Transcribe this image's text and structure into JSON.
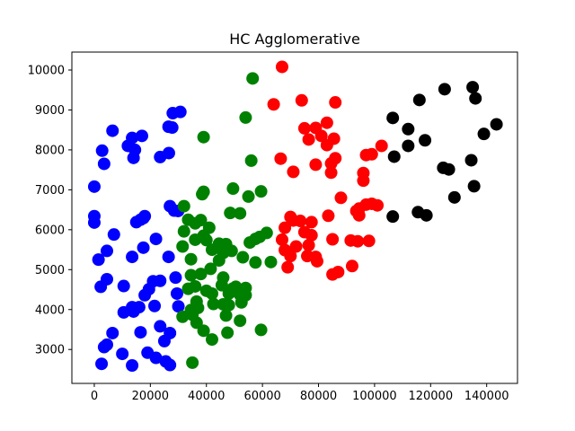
{
  "chart_data": {
    "type": "scatter",
    "title": "HC Agglomerative",
    "xlabel": "",
    "ylabel": "",
    "xlim": [
      -8000,
      151000
    ],
    "ylim": [
      2150,
      10450
    ],
    "grid": false,
    "xticks": [
      0,
      20000,
      40000,
      60000,
      80000,
      100000,
      120000,
      140000
    ],
    "yticks": [
      3000,
      4000,
      5000,
      6000,
      7000,
      8000,
      9000,
      10000
    ],
    "xtick_labels": [
      "0",
      "20000",
      "40000",
      "60000",
      "80000",
      "100000",
      "120000",
      "140000"
    ],
    "ytick_labels": [
      "3000",
      "4000",
      "5000",
      "6000",
      "7000",
      "8000",
      "9000",
      "10000"
    ],
    "series": [
      {
        "color": "#0000ff",
        "points": [
          [
            6500,
            8480
          ],
          [
            2800,
            7980
          ],
          [
            3500,
            7650
          ],
          [
            13500,
            8300
          ],
          [
            17000,
            8350
          ],
          [
            14500,
            8000
          ],
          [
            12000,
            8100
          ],
          [
            14000,
            7800
          ],
          [
            28000,
            8920
          ],
          [
            30700,
            8950
          ],
          [
            26500,
            8580
          ],
          [
            27800,
            8560
          ],
          [
            26600,
            7920
          ],
          [
            23500,
            7820
          ],
          [
            0,
            7080
          ],
          [
            0,
            6340
          ],
          [
            0,
            6180
          ],
          [
            27000,
            6590
          ],
          [
            28500,
            6480
          ],
          [
            29900,
            6470
          ],
          [
            15000,
            6190
          ],
          [
            17500,
            6290
          ],
          [
            18000,
            6340
          ],
          [
            16500,
            6250
          ],
          [
            7000,
            5880
          ],
          [
            4500,
            5470
          ],
          [
            17500,
            5550
          ],
          [
            22000,
            5770
          ],
          [
            1500,
            5250
          ],
          [
            13500,
            5320
          ],
          [
            26500,
            5320
          ],
          [
            29000,
            4800
          ],
          [
            4500,
            4760
          ],
          [
            2300,
            4570
          ],
          [
            10500,
            4590
          ],
          [
            21000,
            4710
          ],
          [
            23500,
            4720
          ],
          [
            19500,
            4510
          ],
          [
            18000,
            4360
          ],
          [
            29500,
            4400
          ],
          [
            10500,
            3930
          ],
          [
            13500,
            4060
          ],
          [
            14000,
            3950
          ],
          [
            16000,
            4060
          ],
          [
            21500,
            4090
          ],
          [
            30000,
            4080
          ],
          [
            23500,
            3580
          ],
          [
            27000,
            3410
          ],
          [
            25000,
            3210
          ],
          [
            16500,
            3430
          ],
          [
            6500,
            3410
          ],
          [
            4500,
            3120
          ],
          [
            3500,
            3060
          ],
          [
            19000,
            2920
          ],
          [
            10000,
            2890
          ],
          [
            22000,
            2790
          ],
          [
            25500,
            2700
          ],
          [
            27000,
            2610
          ],
          [
            2600,
            2640
          ],
          [
            13500,
            2600
          ]
        ]
      },
      {
        "color": "#008000",
        "points": [
          [
            56500,
            9790
          ],
          [
            54000,
            8810
          ],
          [
            39000,
            8320
          ],
          [
            56000,
            7730
          ],
          [
            49500,
            7030
          ],
          [
            59500,
            6960
          ],
          [
            39000,
            6950
          ],
          [
            38500,
            6890
          ],
          [
            55000,
            6830
          ],
          [
            32000,
            6590
          ],
          [
            33500,
            6250
          ],
          [
            36000,
            6160
          ],
          [
            38000,
            6240
          ],
          [
            41000,
            6050
          ],
          [
            39000,
            5850
          ],
          [
            48500,
            6420
          ],
          [
            52000,
            6410
          ],
          [
            61500,
            5920
          ],
          [
            57500,
            5770
          ],
          [
            59000,
            5820
          ],
          [
            32000,
            5960
          ],
          [
            36000,
            5750
          ],
          [
            40000,
            5740
          ],
          [
            44500,
            5650
          ],
          [
            47000,
            5640
          ],
          [
            46000,
            5420
          ],
          [
            55500,
            5680
          ],
          [
            31500,
            5580
          ],
          [
            42000,
            5500
          ],
          [
            49000,
            5470
          ],
          [
            34500,
            5260
          ],
          [
            44500,
            5230
          ],
          [
            53000,
            5310
          ],
          [
            57500,
            5180
          ],
          [
            63000,
            5190
          ],
          [
            41500,
            5020
          ],
          [
            38000,
            4890
          ],
          [
            34500,
            4860
          ],
          [
            46000,
            4800
          ],
          [
            45500,
            4610
          ],
          [
            49500,
            4530
          ],
          [
            50500,
            4570
          ],
          [
            54000,
            4540
          ],
          [
            33500,
            4520
          ],
          [
            36000,
            4580
          ],
          [
            40000,
            4470
          ],
          [
            42000,
            4400
          ],
          [
            52000,
            4370
          ],
          [
            48000,
            4400
          ],
          [
            54000,
            4360
          ],
          [
            36500,
            4200
          ],
          [
            42500,
            4140
          ],
          [
            52500,
            4180
          ],
          [
            48000,
            4110
          ],
          [
            46000,
            4130
          ],
          [
            37000,
            4040
          ],
          [
            34500,
            3990
          ],
          [
            31500,
            3820
          ],
          [
            35000,
            3870
          ],
          [
            47000,
            3850
          ],
          [
            52000,
            3720
          ],
          [
            36500,
            3670
          ],
          [
            39000,
            3470
          ],
          [
            47500,
            3420
          ],
          [
            59500,
            3490
          ],
          [
            42000,
            3250
          ],
          [
            35000,
            2670
          ]
        ]
      },
      {
        "color": "#ff0000",
        "points": [
          [
            67000,
            10080
          ],
          [
            74000,
            9240
          ],
          [
            86000,
            9190
          ],
          [
            64000,
            9140
          ],
          [
            75000,
            8540
          ],
          [
            79000,
            8550
          ],
          [
            83000,
            8680
          ],
          [
            81000,
            8350
          ],
          [
            76500,
            8260
          ],
          [
            85500,
            8280
          ],
          [
            83000,
            8120
          ],
          [
            99000,
            7890
          ],
          [
            102500,
            8100
          ],
          [
            97000,
            7870
          ],
          [
            86000,
            7790
          ],
          [
            84500,
            7660
          ],
          [
            66500,
            7780
          ],
          [
            79000,
            7630
          ],
          [
            71000,
            7450
          ],
          [
            84500,
            7430
          ],
          [
            96000,
            7420
          ],
          [
            96000,
            7230
          ],
          [
            88000,
            6800
          ],
          [
            94500,
            6530
          ],
          [
            101000,
            6610
          ],
          [
            97000,
            6630
          ],
          [
            99000,
            6650
          ],
          [
            70000,
            6320
          ],
          [
            73500,
            6220
          ],
          [
            77500,
            6190
          ],
          [
            93500,
            6470
          ],
          [
            94500,
            6360
          ],
          [
            83500,
            6350
          ],
          [
            68000,
            6050
          ],
          [
            71000,
            6230
          ],
          [
            75000,
            5940
          ],
          [
            77500,
            5860
          ],
          [
            85000,
            5760
          ],
          [
            91500,
            5730
          ],
          [
            94000,
            5710
          ],
          [
            98000,
            5720
          ],
          [
            67000,
            5750
          ],
          [
            68000,
            5490
          ],
          [
            76500,
            5610
          ],
          [
            70000,
            5340
          ],
          [
            76000,
            5340
          ],
          [
            79000,
            5320
          ],
          [
            79500,
            5210
          ],
          [
            72000,
            5580
          ],
          [
            85000,
            4880
          ],
          [
            87000,
            4940
          ],
          [
            92000,
            5090
          ],
          [
            69000,
            5060
          ]
        ]
      },
      {
        "color": "#000000",
        "points": [
          [
            135000,
            9570
          ],
          [
            125000,
            9520
          ],
          [
            116000,
            9250
          ],
          [
            136000,
            9290
          ],
          [
            106500,
            8800
          ],
          [
            143500,
            8640
          ],
          [
            139000,
            8400
          ],
          [
            112000,
            8520
          ],
          [
            118000,
            8240
          ],
          [
            112000,
            8100
          ],
          [
            107000,
            7830
          ],
          [
            134500,
            7740
          ],
          [
            124500,
            7550
          ],
          [
            126500,
            7510
          ],
          [
            128500,
            6810
          ],
          [
            135500,
            7090
          ],
          [
            106500,
            6330
          ],
          [
            115500,
            6440
          ],
          [
            118500,
            6360
          ]
        ]
      }
    ]
  }
}
